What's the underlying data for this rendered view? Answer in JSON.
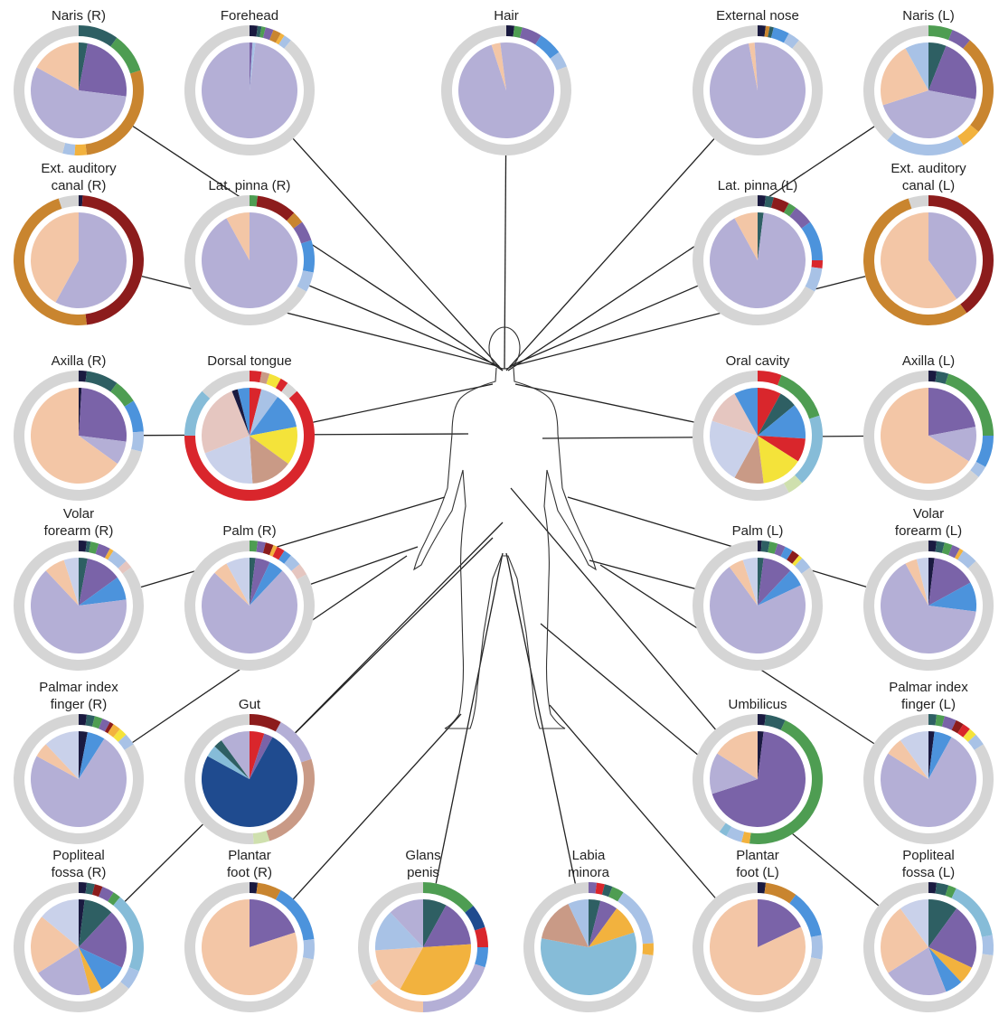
{
  "chart_data": [
    {
      "type": "donut",
      "title": [
        "Naris (R)"
      ],
      "inner": {
        "values": [
          3,
          24,
          56,
          17
        ],
        "colors": [
          "#2e5f63",
          "#7a63a8",
          "#b4afd6",
          "#f3c6a6"
        ]
      },
      "outer": {
        "values": [
          10,
          10,
          28,
          3,
          3,
          46
        ],
        "colors": [
          "#2e5f63",
          "#4e9d52",
          "#c9852f",
          "#f2b23e",
          "#a8c2e6",
          "#d5d5d5"
        ]
      }
    },
    {
      "type": "donut",
      "title": [
        "Forehead"
      ],
      "inner": {
        "values": [
          1,
          1,
          98
        ],
        "colors": [
          "#7a63a8",
          "#a8c2e6",
          "#b4afd6"
        ]
      },
      "outer": {
        "values": [
          2,
          1,
          1,
          2,
          2,
          1,
          2,
          89
        ],
        "colors": [
          "#1a1a40",
          "#2e5f63",
          "#4e9d52",
          "#7a63a8",
          "#c9852f",
          "#f2b23e",
          "#a8c2e6",
          "#d5d5d5"
        ]
      }
    },
    {
      "type": "donut",
      "title": [
        "Hair"
      ],
      "inner": {
        "values": [
          95,
          3,
          2
        ],
        "colors": [
          "#b4afd6",
          "#f3c6a6",
          "#b4afd6"
        ]
      },
      "outer": {
        "values": [
          2,
          2,
          5,
          6,
          4,
          81
        ],
        "colors": [
          "#1a1a40",
          "#4e9d52",
          "#7a63a8",
          "#4c93dc",
          "#a8c2e6",
          "#d5d5d5"
        ]
      }
    },
    {
      "type": "donut",
      "title": [
        "External nose"
      ],
      "inner": {
        "values": [
          97,
          2,
          1
        ],
        "colors": [
          "#b4afd6",
          "#f3c6a6",
          "#b4afd6"
        ]
      },
      "outer": {
        "values": [
          2,
          1,
          1,
          4,
          3,
          89
        ],
        "colors": [
          "#1a1a40",
          "#c9852f",
          "#2e5f63",
          "#4c93dc",
          "#a8c2e6",
          "#d5d5d5"
        ]
      }
    },
    {
      "type": "donut",
      "title": [
        "Naris (L)"
      ],
      "inner": {
        "values": [
          6,
          22,
          42,
          22,
          8
        ],
        "colors": [
          "#2e5f63",
          "#7a63a8",
          "#b4afd6",
          "#f3c6a6",
          "#a8c2e6"
        ]
      },
      "outer": {
        "values": [
          6,
          5,
          25,
          5,
          20,
          39
        ],
        "colors": [
          "#4e9d52",
          "#7a63a8",
          "#c9852f",
          "#f2b23e",
          "#a8c2e6",
          "#d5d5d5"
        ]
      }
    },
    {
      "type": "donut",
      "title": [
        "Ext. auditory",
        "canal (R)"
      ],
      "inner": {
        "values": [
          58,
          42
        ],
        "colors": [
          "#b4afd6",
          "#f3c6a6"
        ]
      },
      "outer": {
        "values": [
          1,
          47,
          47,
          5
        ],
        "colors": [
          "#1a1a40",
          "#8c1c1c",
          "#c9852f",
          "#d5d5d5"
        ]
      }
    },
    {
      "type": "donut",
      "title": [
        "Lat. pinna (R)"
      ],
      "inner": {
        "values": [
          92,
          8
        ],
        "colors": [
          "#b4afd6",
          "#f3c6a6"
        ]
      },
      "outer": {
        "values": [
          2,
          10,
          3,
          5,
          8,
          5,
          67
        ],
        "colors": [
          "#4e9d52",
          "#8c1c1c",
          "#c9852f",
          "#7a63a8",
          "#4c93dc",
          "#a8c2e6",
          "#d5d5d5"
        ]
      }
    },
    {
      "type": "donut",
      "title": [
        "Lat. pinna (L)"
      ],
      "inner": {
        "values": [
          2,
          90,
          8
        ],
        "colors": [
          "#2e5f63",
          "#b4afd6",
          "#f3c6a6"
        ]
      },
      "outer": {
        "values": [
          2,
          2,
          4,
          2,
          5,
          10,
          2,
          6,
          67
        ],
        "colors": [
          "#1a1a40",
          "#2e5f63",
          "#8c1c1c",
          "#4e9d52",
          "#7a63a8",
          "#4c93dc",
          "#d9262c",
          "#a8c2e6",
          "#d5d5d5"
        ]
      }
    },
    {
      "type": "donut",
      "title": [
        "Ext. auditory",
        "canal (L)"
      ],
      "inner": {
        "values": [
          40,
          60
        ],
        "colors": [
          "#b4afd6",
          "#f3c6a6"
        ]
      },
      "outer": {
        "values": [
          40,
          55,
          5
        ],
        "colors": [
          "#8c1c1c",
          "#c9852f",
          "#d5d5d5"
        ]
      }
    },
    {
      "type": "donut",
      "title": [
        "Axilla (R)"
      ],
      "inner": {
        "values": [
          1,
          26,
          8,
          65
        ],
        "colors": [
          "#1a1a40",
          "#7a63a8",
          "#b4afd6",
          "#f3c6a6"
        ]
      },
      "outer": {
        "values": [
          2,
          8,
          6,
          8,
          5,
          71
        ],
        "colors": [
          "#1a1a40",
          "#2e5f63",
          "#4e9d52",
          "#4c93dc",
          "#a8c2e6",
          "#d5d5d5"
        ]
      }
    },
    {
      "type": "donut",
      "title": [
        "Dorsal tongue"
      ],
      "inner": {
        "values": [
          4,
          6,
          12,
          13,
          14,
          20,
          25,
          2,
          4
        ],
        "colors": [
          "#d9262c",
          "#a8c2e6",
          "#4c93dc",
          "#f4e33a",
          "#c99a86",
          "#c9d1ea",
          "#e5c6c0",
          "#1a1a40",
          "#4c93dc"
        ]
      },
      "outer": {
        "values": [
          3,
          2,
          3,
          2,
          3,
          62,
          12,
          13
        ],
        "colors": [
          "#d9262c",
          "#c99a86",
          "#f4e33a",
          "#d9262c",
          "#d5d5d5",
          "#d9262c",
          "#86bcd8",
          "#d5d5d5"
        ]
      }
    },
    {
      "type": "donut",
      "title": [
        "Oral cavity"
      ],
      "inner": {
        "values": [
          8,
          6,
          12,
          8,
          14,
          10,
          22,
          12,
          8
        ],
        "colors": [
          "#d9262c",
          "#2e5f63",
          "#4c93dc",
          "#d9262c",
          "#f4e33a",
          "#c99a86",
          "#c9d1ea",
          "#e5c6c0",
          "#4c93dc"
        ]
      },
      "outer": {
        "values": [
          6,
          14,
          18,
          4,
          58
        ],
        "colors": [
          "#d9262c",
          "#4e9d52",
          "#86bcd8",
          "#cfe0ae",
          "#d5d5d5"
        ]
      }
    },
    {
      "type": "donut",
      "title": [
        "Axilla (L)"
      ],
      "inner": {
        "values": [
          22,
          12,
          66
        ],
        "colors": [
          "#7a63a8",
          "#b4afd6",
          "#f3c6a6"
        ]
      },
      "outer": {
        "values": [
          2,
          3,
          20,
          8,
          3,
          64
        ],
        "colors": [
          "#1a1a40",
          "#2e5f63",
          "#4e9d52",
          "#4c93dc",
          "#a8c2e6",
          "#d5d5d5"
        ]
      }
    },
    {
      "type": "donut",
      "title": [
        "Volar",
        "forearm (R)"
      ],
      "inner": {
        "values": [
          3,
          12,
          8,
          65,
          7,
          5
        ],
        "colors": [
          "#2e5f63",
          "#7a63a8",
          "#4c93dc",
          "#b4afd6",
          "#f3c6a6",
          "#c9d1ea"
        ]
      },
      "outer": {
        "values": [
          2,
          1,
          2,
          3,
          1,
          4,
          2,
          85
        ],
        "colors": [
          "#1a1a40",
          "#2e5f63",
          "#4e9d52",
          "#7a63a8",
          "#f2b23e",
          "#a8c2e6",
          "#e5c6c0",
          "#d5d5d5"
        ]
      }
    },
    {
      "type": "donut",
      "title": [
        "Palm (R)"
      ],
      "inner": {
        "values": [
          2,
          5,
          5,
          75,
          5,
          8
        ],
        "colors": [
          "#2e5f63",
          "#7a63a8",
          "#4c93dc",
          "#b4afd6",
          "#f3c6a6",
          "#c9d1ea"
        ]
      },
      "outer": {
        "values": [
          2,
          2,
          2,
          1,
          2,
          2,
          3,
          3,
          83
        ],
        "colors": [
          "#4e9d52",
          "#7a63a8",
          "#8c1c1c",
          "#f2b23e",
          "#d9262c",
          "#4c93dc",
          "#a8c2e6",
          "#e5c6c0",
          "#d5d5d5"
        ]
      }
    },
    {
      "type": "donut",
      "title": [
        "Palm (L)"
      ],
      "inner": {
        "values": [
          2,
          10,
          6,
          72,
          5,
          5
        ],
        "colors": [
          "#2e5f63",
          "#7a63a8",
          "#4c93dc",
          "#b4afd6",
          "#f3c6a6",
          "#c9d1ea"
        ]
      },
      "outer": {
        "values": [
          1,
          2,
          2,
          2,
          2,
          2,
          1,
          3,
          85
        ],
        "colors": [
          "#1a1a40",
          "#2e5f63",
          "#4e9d52",
          "#7a63a8",
          "#4c93dc",
          "#8c1c1c",
          "#f4e33a",
          "#a8c2e6",
          "#d5d5d5"
        ]
      }
    },
    {
      "type": "donut",
      "title": [
        "Volar",
        "forearm (L)"
      ],
      "inner": {
        "values": [
          2,
          15,
          10,
          65,
          4,
          4
        ],
        "colors": [
          "#1a1a40",
          "#7a63a8",
          "#4c93dc",
          "#b4afd6",
          "#f3c6a6",
          "#c9d1ea"
        ]
      },
      "outer": {
        "values": [
          2,
          2,
          2,
          2,
          1,
          4,
          87
        ],
        "colors": [
          "#1a1a40",
          "#2e5f63",
          "#4e9d52",
          "#7a63a8",
          "#f2b23e",
          "#a8c2e6",
          "#d5d5d5"
        ]
      }
    },
    {
      "type": "donut",
      "title": [
        "Palmar index",
        "finger (R)"
      ],
      "inner": {
        "values": [
          3,
          6,
          74,
          5,
          12
        ],
        "colors": [
          "#1a1a40",
          "#4c93dc",
          "#b4afd6",
          "#f3c6a6",
          "#c9d1ea"
        ]
      },
      "outer": {
        "values": [
          2,
          2,
          2,
          2,
          1,
          2,
          2,
          3,
          84
        ],
        "colors": [
          "#1a1a40",
          "#2e5f63",
          "#4e9d52",
          "#7a63a8",
          "#8c1c1c",
          "#f2b23e",
          "#f4e33a",
          "#a8c2e6",
          "#d5d5d5"
        ]
      }
    },
    {
      "type": "donut",
      "title": [
        "Gut"
      ],
      "inner": {
        "values": [
          5,
          3,
          75,
          4,
          3,
          10
        ],
        "colors": [
          "#d9262c",
          "#7a63a8",
          "#1f4b8f",
          "#86bcd8",
          "#2e5f63",
          "#b4afd6"
        ]
      },
      "outer": {
        "values": [
          8,
          12,
          25,
          4,
          51
        ],
        "colors": [
          "#8c1c1c",
          "#b4afd6",
          "#c99a86",
          "#cfe0ae",
          "#d5d5d5"
        ]
      }
    },
    {
      "type": "donut",
      "title": [
        "Umbilicus"
      ],
      "inner": {
        "values": [
          2,
          68,
          14,
          16
        ],
        "colors": [
          "#1a1a40",
          "#7a63a8",
          "#b4afd6",
          "#f3c6a6"
        ]
      },
      "outer": {
        "values": [
          2,
          5,
          45,
          2,
          4,
          2,
          40
        ],
        "colors": [
          "#1a1a40",
          "#2e5f63",
          "#4e9d52",
          "#f2b23e",
          "#a8c2e6",
          "#86bcd8",
          "#d5d5d5"
        ]
      }
    },
    {
      "type": "donut",
      "title": [
        "Palmar index",
        "finger (L)"
      ],
      "inner": {
        "values": [
          2,
          6,
          76,
          6,
          10
        ],
        "colors": [
          "#1a1a40",
          "#4c93dc",
          "#b4afd6",
          "#f3c6a6",
          "#c9d1ea"
        ]
      },
      "outer": {
        "values": [
          2,
          2,
          3,
          2,
          2,
          2,
          3,
          84
        ],
        "colors": [
          "#2e5f63",
          "#4e9d52",
          "#7a63a8",
          "#8c1c1c",
          "#d9262c",
          "#f4e33a",
          "#a8c2e6",
          "#d5d5d5"
        ]
      }
    },
    {
      "type": "donut",
      "title": [
        "Popliteal",
        "fossa (R)"
      ],
      "inner": {
        "values": [
          2,
          10,
          20,
          10,
          4,
          20,
          20,
          14
        ],
        "colors": [
          "#1a1a40",
          "#2e5f63",
          "#7a63a8",
          "#4c93dc",
          "#f2b23e",
          "#b4afd6",
          "#f3c6a6",
          "#c9d1ea"
        ]
      },
      "outer": {
        "values": [
          2,
          2,
          2,
          3,
          2,
          20,
          5,
          64
        ],
        "colors": [
          "#1a1a40",
          "#2e5f63",
          "#8c1c1c",
          "#7a63a8",
          "#4e9d52",
          "#86bcd8",
          "#a8c2e6",
          "#d5d5d5"
        ]
      }
    },
    {
      "type": "donut",
      "title": [
        "Plantar",
        "foot (R)"
      ],
      "inner": {
        "values": [
          20,
          80
        ],
        "colors": [
          "#7a63a8",
          "#f3c6a6"
        ]
      },
      "outer": {
        "values": [
          2,
          6,
          15,
          5,
          72
        ],
        "colors": [
          "#1a1a40",
          "#c9852f",
          "#4c93dc",
          "#a8c2e6",
          "#d5d5d5"
        ]
      }
    },
    {
      "type": "donut",
      "title": [
        "Glans",
        "penis"
      ],
      "inner": {
        "values": [
          8,
          16,
          34,
          16,
          14,
          12
        ],
        "colors": [
          "#2e5f63",
          "#7a63a8",
          "#f2b23e",
          "#f3c6a6",
          "#a8c2e6",
          "#b4afd6"
        ]
      },
      "outer": {
        "values": [
          14,
          6,
          5,
          5,
          20,
          15,
          35
        ],
        "colors": [
          "#4e9d52",
          "#1f4b8f",
          "#d9262c",
          "#4c93dc",
          "#b4afd6",
          "#f3c6a6",
          "#d5d5d5"
        ]
      }
    },
    {
      "type": "donut",
      "title": [
        "Labia",
        "minora"
      ],
      "inner": {
        "values": [
          4,
          6,
          10,
          58,
          15,
          7
        ],
        "colors": [
          "#2e5f63",
          "#7a63a8",
          "#f2b23e",
          "#86bcd8",
          "#c99a86",
          "#a8c2e6"
        ]
      },
      "outer": {
        "values": [
          2,
          2,
          2,
          3,
          15,
          3,
          73
        ],
        "colors": [
          "#7a63a8",
          "#d9262c",
          "#2e5f63",
          "#4e9d52",
          "#a8c2e6",
          "#f2b23e",
          "#d5d5d5"
        ]
      }
    },
    {
      "type": "donut",
      "title": [
        "Plantar",
        "foot (L)"
      ],
      "inner": {
        "values": [
          18,
          82
        ],
        "colors": [
          "#7a63a8",
          "#f3c6a6"
        ]
      },
      "outer": {
        "values": [
          2,
          8,
          12,
          6,
          72
        ],
        "colors": [
          "#1a1a40",
          "#c9852f",
          "#4c93dc",
          "#a8c2e6",
          "#d5d5d5"
        ]
      }
    },
    {
      "type": "donut",
      "title": [
        "Popliteal",
        "fossa (L)"
      ],
      "inner": {
        "values": [
          10,
          22,
          6,
          6,
          22,
          24,
          10
        ],
        "colors": [
          "#2e5f63",
          "#7a63a8",
          "#f2b23e",
          "#4c93dc",
          "#b4afd6",
          "#f3c6a6",
          "#c9d1ea"
        ]
      },
      "outer": {
        "values": [
          2,
          3,
          2,
          15,
          5,
          73
        ],
        "colors": [
          "#1a1a40",
          "#2e5f63",
          "#4e9d52",
          "#86bcd8",
          "#a8c2e6",
          "#d5d5d5"
        ]
      }
    }
  ]
}
